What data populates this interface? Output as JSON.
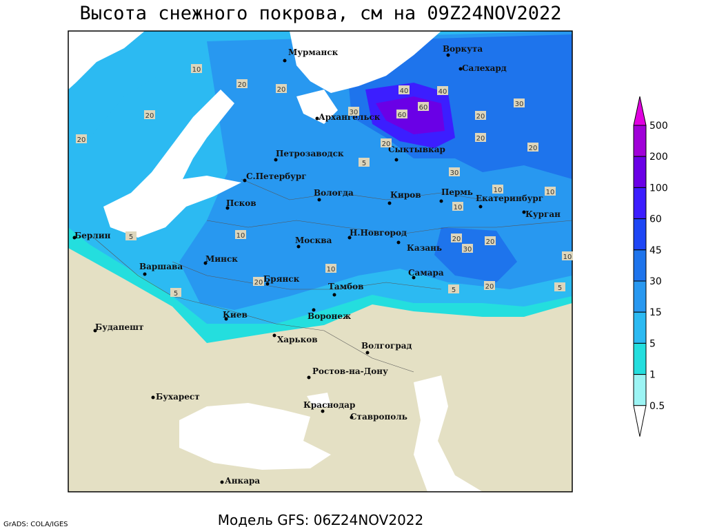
{
  "header": {
    "title": "Высота снежного покрова, см на 09Z24NOV2022"
  },
  "footer": {
    "model": "Модель GFS: 06Z24NOV2022",
    "credit": "GrADS: COLA/IGES"
  },
  "map": {
    "cities": [
      "Мурманск",
      "Воркута",
      "Салехард",
      "Архангельск",
      "Сыктывкар",
      "Петрозаводск",
      "С.Петербург",
      "Вологда",
      "Киров",
      "Пермь",
      "Екатеринбург",
      "Курган",
      "Псков",
      "Берлин",
      "Москва",
      "Н.Новгород",
      "Казань",
      "Варшава",
      "Минск",
      "Брянск",
      "Тамбов",
      "Самара",
      "Киев",
      "Воронеж",
      "Будапешт",
      "Харьков",
      "Волгоград",
      "Ростов-на-Дону",
      "Бухарест",
      "Краснодар",
      "Ставрополь",
      "Анкара"
    ],
    "contour_labels": [
      10,
      20,
      20,
      20,
      20,
      30,
      40,
      60,
      60,
      40,
      30,
      20,
      30,
      20,
      20,
      20,
      10,
      10,
      10,
      10,
      20,
      30,
      20,
      20,
      10,
      5,
      5,
      5,
      5,
      5,
      20,
      10
    ]
  },
  "legend": {
    "levels": [
      500,
      200,
      100,
      60,
      45,
      30,
      15,
      5,
      1,
      0.5
    ],
    "colors": [
      "#e000e0",
      "#a000d8",
      "#6a00e6",
      "#3c1eff",
      "#1e46f5",
      "#1e74ec",
      "#2898f0",
      "#2cbaf2",
      "#24dede",
      "#9cf4f4",
      "#ffffff"
    ]
  }
}
